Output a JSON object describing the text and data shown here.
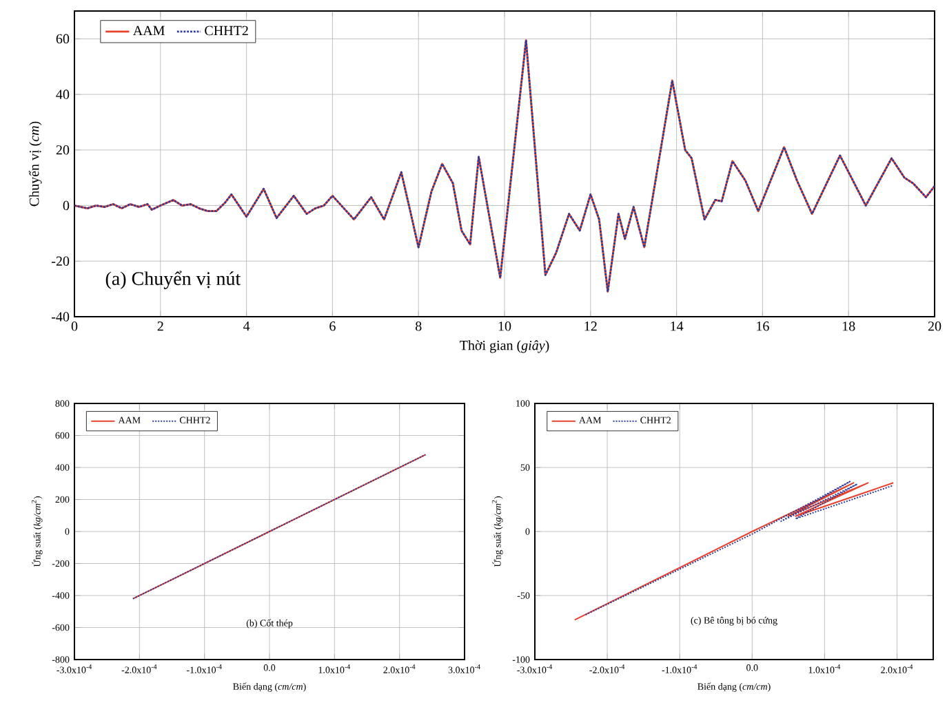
{
  "chart_data": [
    {
      "type": "line",
      "xlabel": "Thời gian (*giây*)",
      "ylabel": "Chuyển vị (*cm*)",
      "xlim": [
        0,
        20
      ],
      "ylim": [
        -40,
        70
      ],
      "xticks": [
        0,
        2,
        4,
        6,
        8,
        10,
        12,
        14,
        16,
        18,
        20
      ],
      "yticks": [
        -40,
        -20,
        0,
        20,
        40,
        60
      ],
      "grid": true,
      "legend": "top left",
      "annotations": [
        "(a) Chuyển vị nút"
      ],
      "x": [
        0,
        0.3,
        0.5,
        0.7,
        0.9,
        1.1,
        1.3,
        1.5,
        1.7,
        1.8,
        2.0,
        2.3,
        2.5,
        2.7,
        2.9,
        3.1,
        3.3,
        3.5,
        3.65,
        4.0,
        4.4,
        4.7,
        5.1,
        5.4,
        5.6,
        5.8,
        6.0,
        6.5,
        6.9,
        7.2,
        7.6,
        8.0,
        8.3,
        8.55,
        8.8,
        9.0,
        9.2,
        9.4,
        9.9,
        10.5,
        10.95,
        11.2,
        11.5,
        11.75,
        12.0,
        12.2,
        12.4,
        12.65,
        12.8,
        13.0,
        13.25,
        13.5,
        13.9,
        14.2,
        14.35,
        14.65,
        14.9,
        15.05,
        15.3,
        15.6,
        15.9,
        16.5,
        16.8,
        17.15,
        17.8,
        18.1,
        18.4,
        19.0,
        19.3,
        19.5,
        19.8,
        20.0
      ],
      "series": [
        {
          "name": "AAM",
          "color": "#e8412c",
          "line_style": "solid",
          "values": [
            0,
            -1,
            0,
            -0.5,
            0.5,
            -1,
            0.5,
            -0.5,
            0.5,
            -1.5,
            0,
            2,
            0,
            0.5,
            -1,
            -2,
            -2,
            1,
            4,
            -4,
            6,
            -4.5,
            3.5,
            -3,
            -1,
            0,
            3.5,
            -5,
            3,
            -5,
            12,
            -15,
            5,
            15,
            8,
            -9,
            -14,
            17.5,
            -26,
            59.5,
            -25,
            -17,
            -3,
            -9,
            4,
            -5,
            -31,
            -3,
            -12,
            -0.5,
            -15,
            8,
            45,
            20,
            17,
            -5,
            2,
            1.5,
            16,
            9,
            -2,
            21,
            9,
            -3,
            18,
            9,
            0,
            17,
            10,
            8,
            3,
            7
          ]
        },
        {
          "name": "CHHT2",
          "color": "#2b3a9a",
          "line_style": "dotted",
          "values": [
            0,
            -1,
            0,
            -0.5,
            0.5,
            -1,
            0.5,
            -0.5,
            0.5,
            -1.5,
            0,
            2,
            0,
            0.5,
            -1,
            -2,
            -2,
            1,
            4,
            -4,
            6,
            -4.5,
            3.5,
            -3,
            -1,
            0,
            3.5,
            -5,
            3,
            -5,
            12,
            -15,
            5,
            15,
            8,
            -9,
            -14,
            17.5,
            -26,
            59.5,
            -25,
            -17,
            -3,
            -9,
            4,
            -5,
            -31,
            -3,
            -12,
            -0.5,
            -15,
            8,
            45,
            20,
            17,
            -5,
            2,
            1.5,
            16,
            9,
            -2,
            21,
            9,
            -3,
            18,
            9,
            0,
            17,
            10,
            8,
            3,
            7
          ]
        }
      ]
    },
    {
      "type": "line",
      "xlabel": "Biến dạng (*cm/cm*)",
      "ylabel": "Ứng suất (*kg/cm*$^{2}$)",
      "xlim": [
        -0.0003,
        0.0003
      ],
      "ylim": [
        -800,
        800
      ],
      "xticks": [
        {
          "value": -0.0003,
          "label": "-3.0x10$^{-4}$"
        },
        {
          "value": -0.0002,
          "label": "-2.0x10$^{-4}$"
        },
        {
          "value": -0.0001,
          "label": "-1.0x10$^{-4}$"
        },
        {
          "value": 0,
          "label": "0.0"
        },
        {
          "value": 0.0001,
          "label": "1.0x10$^{-4}$"
        },
        {
          "value": 0.0002,
          "label": "2.0x10$^{-4}$"
        },
        {
          "value": 0.0003,
          "label": "3.0x10$^{-4}$"
        }
      ],
      "yticks": [
        -800,
        -600,
        -400,
        -200,
        0,
        200,
        400,
        600,
        800
      ],
      "grid": true,
      "legend": "top left",
      "annotations": [
        "(b) Cốt thép"
      ],
      "series": [
        {
          "name": "AAM",
          "color": "#e8412c",
          "line_style": "solid",
          "x": [
            -0.00021,
            0,
            0.00024
          ],
          "values": [
            -420,
            0,
            480
          ]
        },
        {
          "name": "CHHT2",
          "color": "#2b3a9a",
          "line_style": "dotted",
          "x": [
            -0.00021,
            0,
            0.00024
          ],
          "values": [
            -420,
            0,
            480
          ]
        }
      ]
    },
    {
      "type": "line",
      "xlabel": "Biến dạng (*cm/cm*)",
      "ylabel": "Ứng suất (*kg/cm*$^{2}$)",
      "xlim": [
        -0.0003,
        0.00025
      ],
      "ylim": [
        -100,
        100
      ],
      "xticks": [
        {
          "value": -0.0003,
          "label": "-3.0x10$^{-4}$"
        },
        {
          "value": -0.0002,
          "label": "-2.0x10$^{-4}$"
        },
        {
          "value": -0.0001,
          "label": "-1.0x10$^{-4}$"
        },
        {
          "value": 0,
          "label": "0.0"
        },
        {
          "value": 0.0001,
          "label": "1.0x10$^{-4}$"
        },
        {
          "value": 0.0002,
          "label": "2.0x10$^{-4}$"
        }
      ],
      "yticks": [
        -100,
        -50,
        0,
        50,
        100
      ],
      "grid": true,
      "legend": "top left",
      "annotations": [
        "(c) Bê tông bị bó cứng"
      ],
      "series": [
        {
          "name": "AAM",
          "color": "#e8412c",
          "line_style": "solid",
          "x": [
            -0.000245,
            0,
            0.00014,
            5e-05,
            0.00016,
            6e-05,
            0.000195
          ],
          "values": [
            -69,
            0,
            38,
            12,
            38,
            12,
            38
          ]
        },
        {
          "name": "CHHT2",
          "color": "#2b3a9a",
          "line_style": "dotted",
          "x": [
            -0.00023,
            0,
            0.000135,
            4e-05,
            0.000145,
            6e-05,
            0.000195
          ],
          "values": [
            -65,
            -2,
            39,
            8,
            37,
            10,
            36
          ]
        }
      ]
    }
  ]
}
